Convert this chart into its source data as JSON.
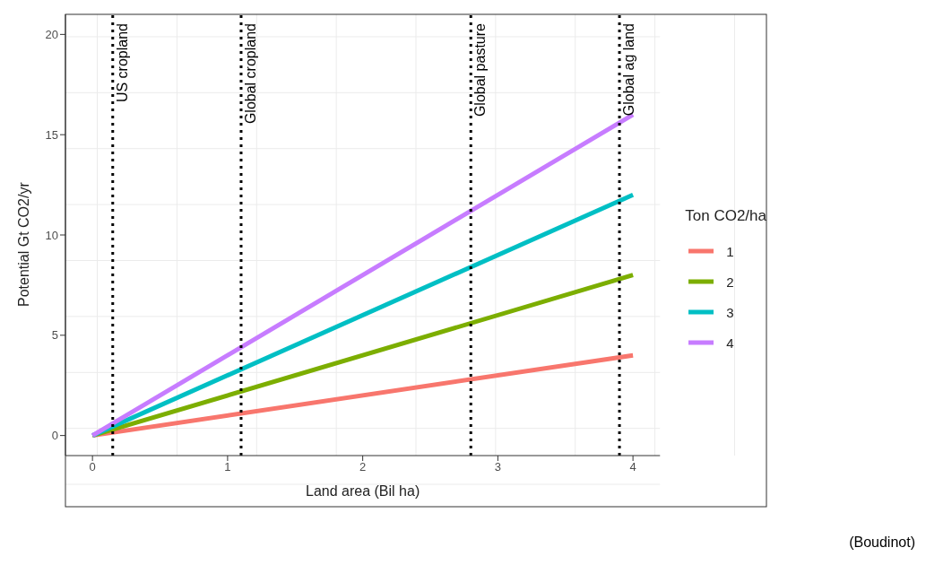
{
  "chart_data": {
    "type": "line",
    "xlabel": "Land area (Bil ha)",
    "ylabel": "Potential Gt CO2/yr",
    "legend_title": "Ton CO2/ha",
    "x": [
      0,
      4
    ],
    "series": [
      {
        "name": "1",
        "color": "#f8766d",
        "values": [
          0,
          4
        ]
      },
      {
        "name": "2",
        "color": "#7cae00",
        "values": [
          0,
          8
        ]
      },
      {
        "name": "3",
        "color": "#00bfc4",
        "values": [
          0,
          12
        ]
      },
      {
        "name": "4",
        "color": "#c77cff",
        "values": [
          0,
          16
        ]
      }
    ],
    "xlim": [
      -0.2,
      4.2
    ],
    "xticks": [
      0,
      1,
      2,
      3,
      4
    ],
    "ylim": [
      -1,
      21
    ],
    "yticks": [
      0,
      5,
      10,
      15,
      20
    ],
    "ref_lines": [
      {
        "axis": "x",
        "value": 0.15,
        "label": "US cropland",
        "color": "#000000",
        "line_style": "dotted"
      },
      {
        "axis": "x",
        "value": 1.1,
        "label": "Global cropland",
        "color": "#000000",
        "line_style": "dotted"
      },
      {
        "axis": "x",
        "value": 2.8,
        "label": "Global pasture",
        "color": "#000000",
        "line_style": "dotted"
      },
      {
        "axis": "x",
        "value": 3.9,
        "label": "Global ag land",
        "color": "#000000",
        "line_style": "dotted"
      }
    ],
    "annotations": [
      "(Boudinot)"
    ],
    "grid": true,
    "legend": "right",
    "marker": "none",
    "line_style": "solid"
  }
}
